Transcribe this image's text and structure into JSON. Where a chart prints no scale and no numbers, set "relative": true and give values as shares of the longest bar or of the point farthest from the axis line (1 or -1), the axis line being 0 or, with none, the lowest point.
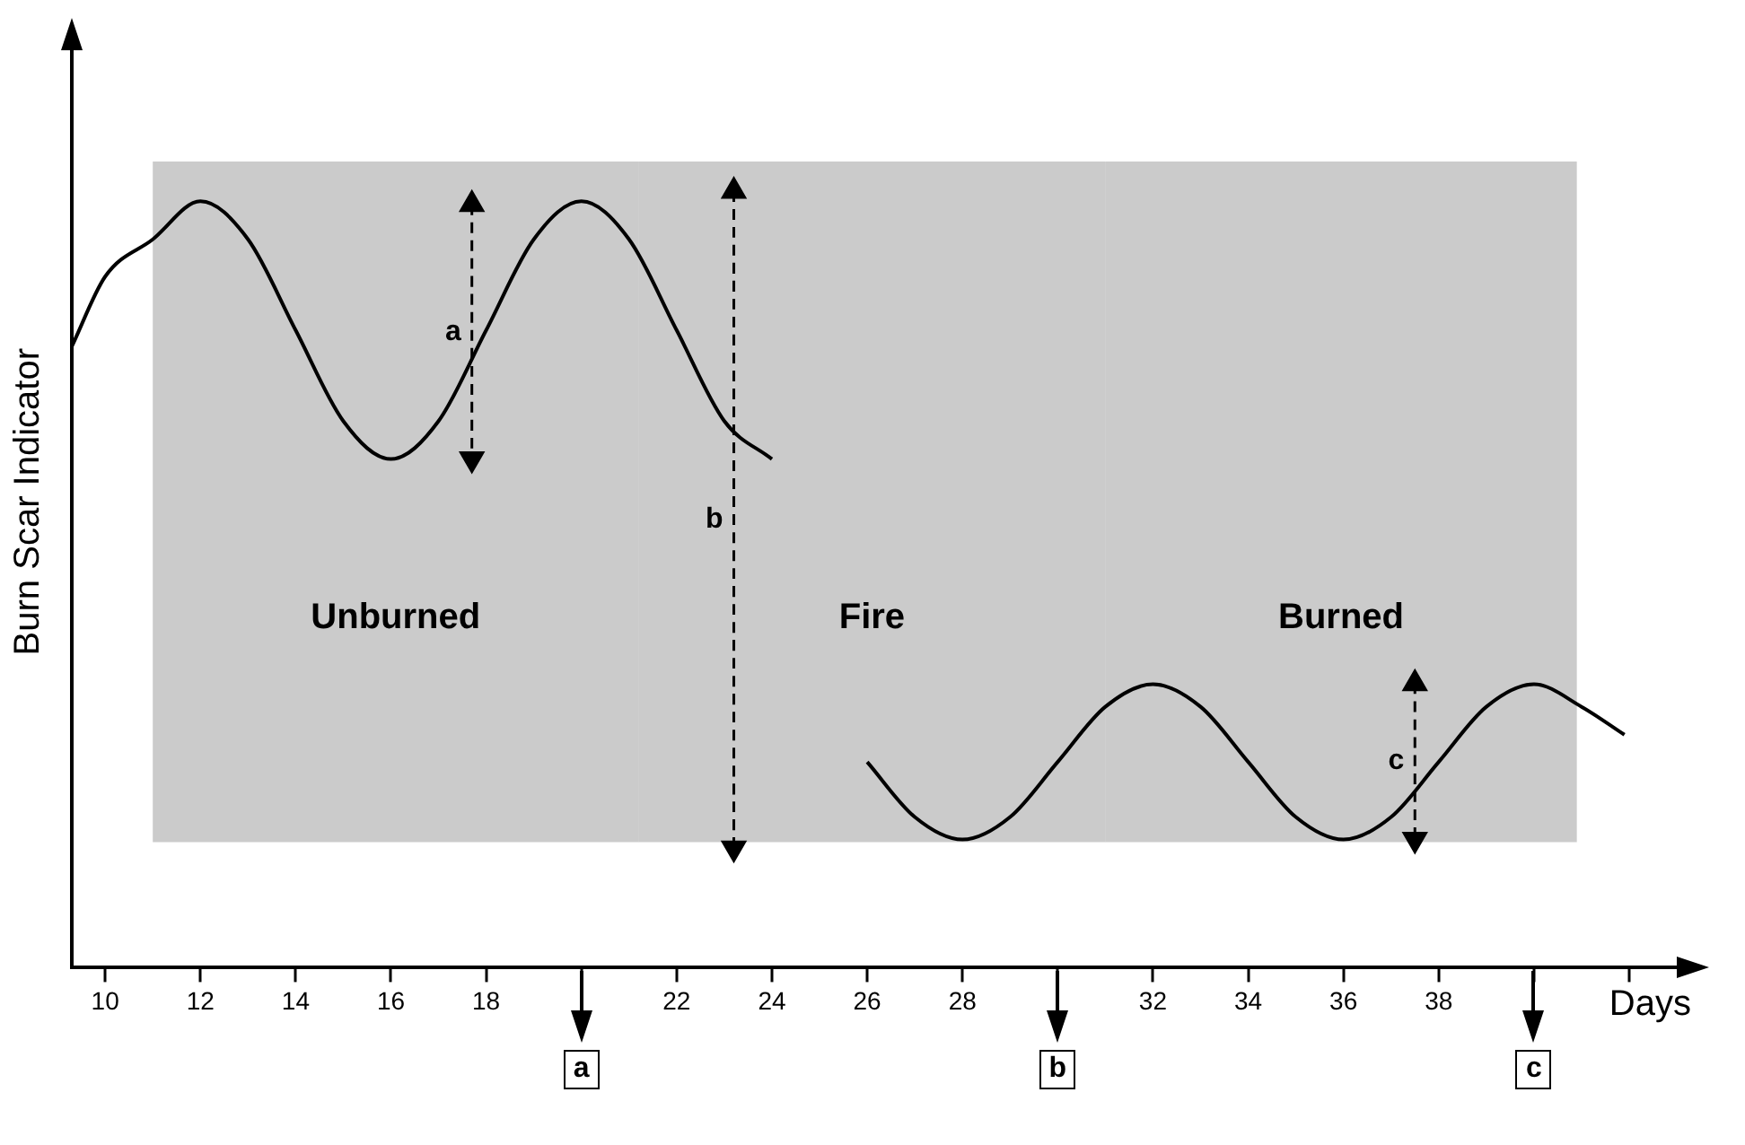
{
  "chart_data": {
    "type": "line",
    "relative": true,
    "xlabel": "Days",
    "ylabel": "Burn Scar Indicator",
    "xlim": [
      9.3,
      43.3
    ],
    "xticks": [
      10,
      12,
      14,
      16,
      18,
      {
        "value": 20,
        "label": null
      },
      22,
      24,
      26,
      28,
      {
        "value": 30,
        "label": null
      },
      32,
      34,
      36,
      38,
      {
        "value": 40,
        "label": null
      },
      {
        "value": 42,
        "label": null
      }
    ],
    "series": [
      {
        "color": "#000000",
        "line_style": "solid",
        "marker": "none",
        "x": [
          9.3,
          10,
          11,
          12,
          13,
          14,
          15,
          16,
          17,
          18,
          19,
          20,
          21,
          22,
          23,
          24
        ],
        "values": [
          0.8,
          0.89,
          0.938,
          0.987,
          0.938,
          0.821,
          0.704,
          0.655,
          0.704,
          0.821,
          0.938,
          0.987,
          0.938,
          0.821,
          0.704,
          0.655
        ]
      },
      {
        "color": "#000000",
        "line_style": "solid",
        "marker": "none",
        "x": [
          26,
          27,
          28,
          29,
          30,
          31,
          32,
          33,
          34,
          35,
          36,
          37,
          38,
          39,
          40,
          41,
          41.9
        ],
        "values": [
          0.265,
          0.194,
          0.165,
          0.194,
          0.265,
          0.336,
          0.365,
          0.336,
          0.265,
          0.194,
          0.165,
          0.194,
          0.265,
          0.336,
          0.365,
          0.336,
          0.3
        ]
      },
      {
        "name": "a",
        "color": "#000000",
        "line_style": "dashed",
        "marker": "triangle",
        "x": [
          17.7,
          17.7
        ],
        "values": [
          0.983,
          0.655
        ]
      },
      {
        "name": "b",
        "color": "#000000",
        "line_style": "dashed",
        "marker": "triangle",
        "x": [
          23.2,
          23.2
        ],
        "values": [
          1.0,
          0.154
        ]
      },
      {
        "name": "c",
        "color": "#000000",
        "line_style": "dashed",
        "marker": "triangle",
        "x": [
          37.5,
          37.5
        ],
        "values": [
          0.366,
          0.165
        ]
      }
    ],
    "bands": [
      {
        "axis": "x",
        "from": 11.0,
        "to": 21.2,
        "label": "Unburned",
        "color": "#8c8c8c"
      },
      {
        "axis": "x",
        "from": 21.2,
        "to": 31.0,
        "label": "Fire",
        "color": "#8c8c8c"
      },
      {
        "axis": "x",
        "from": 31.0,
        "to": 40.9,
        "label": "Burned",
        "color": "#8c8c8c"
      }
    ],
    "ref_lines": [
      {
        "axis": "x",
        "value": 20,
        "label": "a"
      },
      {
        "axis": "x",
        "value": 30,
        "label": "b"
      },
      {
        "axis": "x",
        "value": 40,
        "label": "c"
      }
    ],
    "grid": false,
    "legend": false
  }
}
